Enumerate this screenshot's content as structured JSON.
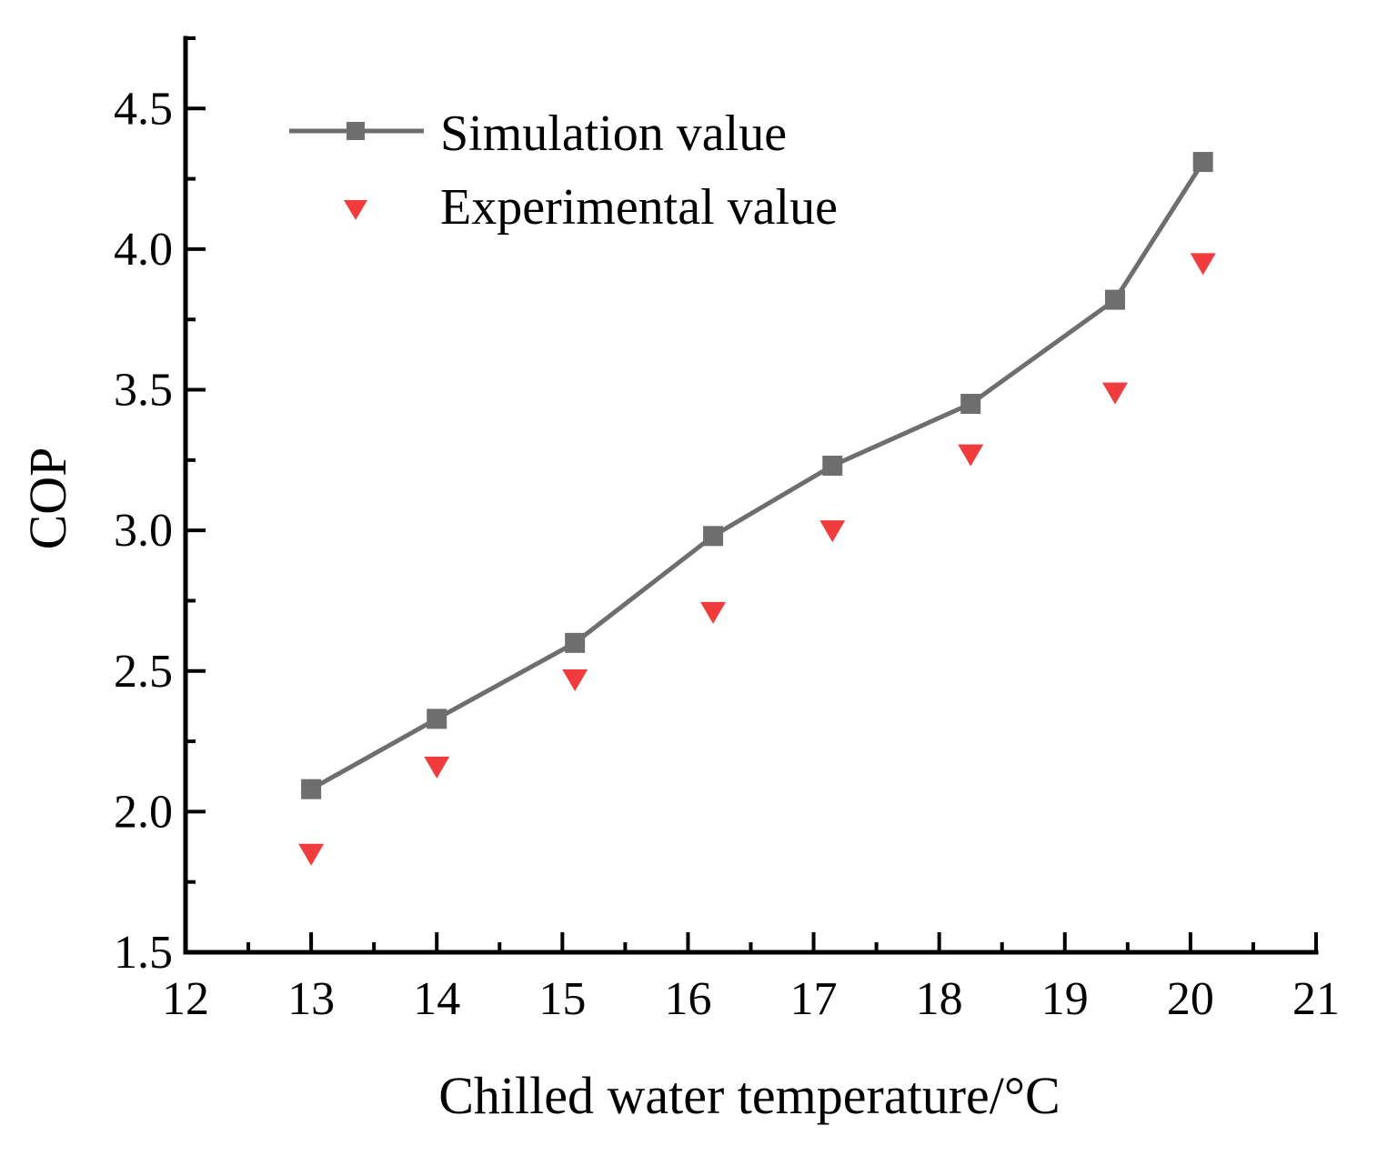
{
  "chart_data": {
    "type": "line",
    "title": "",
    "xlabel": "Chilled water temperature/°C",
    "ylabel": "COP",
    "xlim": [
      12,
      21
    ],
    "ylim": [
      1.5,
      4.75
    ],
    "xticks": [
      "12",
      "13",
      "14",
      "15",
      "16",
      "17",
      "18",
      "19",
      "20",
      "21"
    ],
    "yticks": [
      "1.5",
      "2.0",
      "2.5",
      "3.0",
      "3.5",
      "4.0",
      "4.5"
    ],
    "grid": false,
    "legend_position": "top-left",
    "series": [
      {
        "name": "Simulation value",
        "style": "line-square",
        "color": "#6e6e6e",
        "x": [
          13.0,
          14.0,
          15.1,
          16.2,
          17.15,
          18.25,
          19.4,
          20.1
        ],
        "y": [
          2.08,
          2.33,
          2.6,
          2.98,
          3.23,
          3.45,
          3.82,
          4.31
        ]
      },
      {
        "name": "Experimental value",
        "style": "triangle-down",
        "color": "#f03c3c",
        "x": [
          13.0,
          14.0,
          15.1,
          16.2,
          17.15,
          18.25,
          19.4,
          20.1
        ],
        "y": [
          1.85,
          2.16,
          2.47,
          2.71,
          3.0,
          3.27,
          3.49,
          3.95
        ]
      }
    ]
  }
}
